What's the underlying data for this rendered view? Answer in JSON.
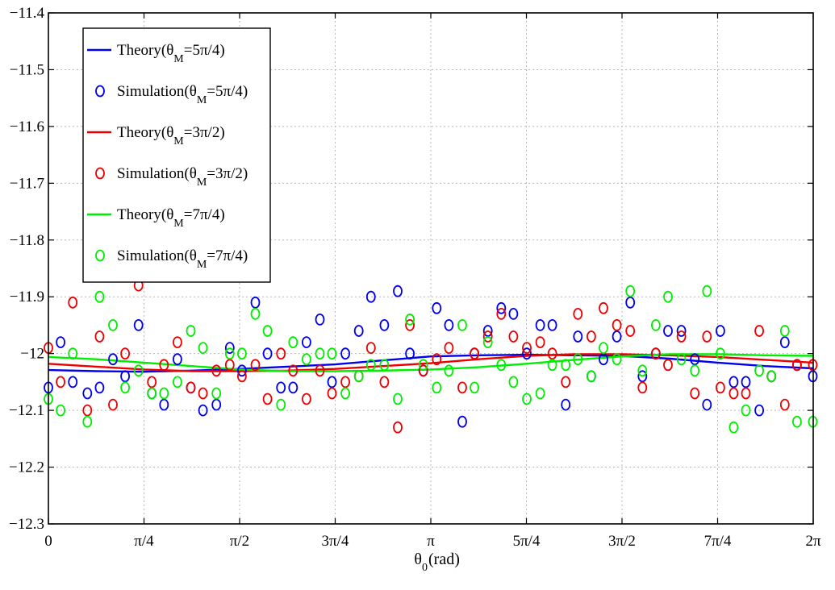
{
  "chart_data": {
    "type": "line",
    "title": "",
    "xlabel": "θ",
    "xlabel_sub": "0",
    "xlabel_suffix": "(rad)",
    "ylabel": "",
    "xlim": [
      0,
      6.283185
    ],
    "ylim": [
      -12.3,
      -11.4
    ],
    "x_ticks": [
      {
        "value": 0,
        "label": "0"
      },
      {
        "value": 0.785398,
        "label": "π/4"
      },
      {
        "value": 1.570796,
        "label": "π/2"
      },
      {
        "value": 2.356194,
        "label": "3π/4"
      },
      {
        "value": 3.141593,
        "label": "π"
      },
      {
        "value": 3.926991,
        "label": "5π/4"
      },
      {
        "value": 4.712389,
        "label": "3π/2"
      },
      {
        "value": 5.497787,
        "label": "7π/4"
      },
      {
        "value": 6.283185,
        "label": "2π"
      }
    ],
    "y_ticks": [
      {
        "value": -11.4,
        "label": "−11.4"
      },
      {
        "value": -11.5,
        "label": "−11.5"
      },
      {
        "value": -11.6,
        "label": "−11.6"
      },
      {
        "value": -11.7,
        "label": "−11.7"
      },
      {
        "value": -11.8,
        "label": "−11.8"
      },
      {
        "value": -11.9,
        "label": "−11.9"
      },
      {
        "value": -12.0,
        "label": "−12"
      },
      {
        "value": -12.1,
        "label": "−12.1"
      },
      {
        "value": -12.2,
        "label": "−12.2"
      },
      {
        "value": -12.3,
        "label": "−12.3"
      }
    ],
    "grid": true,
    "legend_position": "top-left",
    "series": [
      {
        "name": "Theory(θM=5π/4)",
        "label_main": "Theory(θ",
        "label_sub": "M",
        "label_end": "=5π/4)",
        "kind": "line",
        "color": "#0000ee",
        "x": [
          0,
          0.393,
          0.785,
          1.178,
          1.571,
          1.963,
          2.356,
          2.749,
          3.142,
          3.534,
          3.927,
          4.32,
          4.712,
          5.105,
          5.498,
          5.89,
          6.283
        ],
        "y": [
          -12.029,
          -12.031,
          -12.032,
          -12.03,
          -12.027,
          -12.023,
          -12.019,
          -12.012,
          -12.005,
          -12.003,
          -12.002,
          -12.003,
          -12.004,
          -12.009,
          -12.016,
          -12.022,
          -12.026
        ]
      },
      {
        "name": "Simulation(θM=5π/4)",
        "label_main": "Simulation(θ",
        "label_sub": "M",
        "label_end": "=5π/4)",
        "kind": "markers",
        "color": "#0000ee",
        "x": [
          0.0,
          0.1,
          0.2,
          0.32,
          0.42,
          0.53,
          0.63,
          0.74,
          0.85,
          0.95,
          1.06,
          1.17,
          1.27,
          1.38,
          1.49,
          1.59,
          1.7,
          1.8,
          1.91,
          2.01,
          2.12,
          2.23,
          2.33,
          2.44,
          2.55,
          2.65,
          2.76,
          2.87,
          2.97,
          3.08,
          3.19,
          3.29,
          3.4,
          3.5,
          3.61,
          3.72,
          3.82,
          3.93,
          4.04,
          4.14,
          4.25,
          4.35,
          4.46,
          4.56,
          4.67,
          4.78,
          4.88,
          4.99,
          5.09,
          5.2,
          5.31,
          5.41,
          5.52,
          5.63,
          5.73,
          5.84,
          5.94,
          6.05,
          6.15,
          6.28
        ],
        "y": [
          -12.06,
          -11.98,
          -12.05,
          -12.07,
          -12.06,
          -12.01,
          -12.04,
          -11.95,
          -12.07,
          -12.09,
          -12.01,
          -12.06,
          -12.1,
          -12.09,
          -11.99,
          -12.03,
          -11.91,
          -12.0,
          -12.06,
          -12.06,
          -11.98,
          -11.94,
          -12.05,
          -12.0,
          -11.96,
          -11.9,
          -11.95,
          -11.89,
          -12.0,
          -12.03,
          -11.92,
          -11.95,
          -12.12,
          -12.0,
          -11.96,
          -11.92,
          -11.93,
          -12.0,
          -11.95,
          -11.95,
          -12.09,
          -11.97,
          -12.04,
          -12.01,
          -11.97,
          -11.91,
          -12.04,
          -12.0,
          -11.96,
          -11.96,
          -12.01,
          -12.09,
          -11.96,
          -12.05,
          -12.05,
          -12.1,
          -12.04,
          -11.98,
          -12.02,
          -12.04
        ]
      },
      {
        "name": "Theory(θM=3π/2)",
        "label_main": "Theory(θ",
        "label_sub": "M",
        "label_end": "=3π/2)",
        "kind": "line",
        "color": "#ee0000",
        "x": [
          0,
          0.393,
          0.785,
          1.178,
          1.571,
          1.963,
          2.356,
          2.749,
          3.142,
          3.534,
          3.927,
          4.32,
          4.712,
          5.105,
          5.498,
          5.89,
          6.283
        ],
        "y": [
          -12.018,
          -12.023,
          -12.028,
          -12.031,
          -12.031,
          -12.03,
          -12.027,
          -12.022,
          -12.017,
          -12.01,
          -12.004,
          -12.001,
          -12.001,
          -12.003,
          -12.006,
          -12.011,
          -12.016
        ]
      },
      {
        "name": "Simulation(θM=3π/2)",
        "label_main": "Simulation(θ",
        "label_sub": "M",
        "label_end": "=3π/2)",
        "kind": "markers",
        "color": "#ee0000",
        "x": [
          0.0,
          0.1,
          0.2,
          0.32,
          0.42,
          0.53,
          0.63,
          0.74,
          0.85,
          0.95,
          1.06,
          1.17,
          1.27,
          1.38,
          1.49,
          1.59,
          1.7,
          1.8,
          1.91,
          2.01,
          2.12,
          2.23,
          2.33,
          2.44,
          2.55,
          2.65,
          2.76,
          2.87,
          2.97,
          3.08,
          3.19,
          3.29,
          3.4,
          3.5,
          3.61,
          3.72,
          3.82,
          3.93,
          4.04,
          4.14,
          4.25,
          4.35,
          4.46,
          4.56,
          4.67,
          4.78,
          4.88,
          4.99,
          5.09,
          5.2,
          5.31,
          5.41,
          5.52,
          5.63,
          5.73,
          5.84,
          5.94,
          6.05,
          6.15,
          6.28
        ],
        "y": [
          -11.99,
          -12.05,
          -11.91,
          -12.1,
          -11.97,
          -12.09,
          -12.0,
          -11.88,
          -12.05,
          -12.02,
          -11.98,
          -12.06,
          -12.07,
          -12.03,
          -12.02,
          -12.04,
          -12.02,
          -12.08,
          -12.0,
          -12.03,
          -12.08,
          -12.03,
          -12.07,
          -12.05,
          -12.04,
          -11.99,
          -12.05,
          -12.13,
          -11.95,
          -12.03,
          -12.01,
          -11.99,
          -12.06,
          -12.0,
          -11.97,
          -11.93,
          -11.97,
          -11.99,
          -11.98,
          -12.0,
          -12.05,
          -11.93,
          -11.97,
          -11.92,
          -11.95,
          -11.96,
          -12.06,
          -12.0,
          -12.02,
          -11.97,
          -12.07,
          -11.97,
          -12.06,
          -12.07,
          -12.07,
          -11.96,
          -12.04,
          -12.09,
          -12.02,
          -12.02
        ]
      },
      {
        "name": "Theory(θM=7π/4)",
        "label_main": "Theory(θ",
        "label_sub": "M",
        "label_end": "=7π/4)",
        "kind": "line",
        "color": "#00ee00",
        "x": [
          0,
          0.393,
          0.785,
          1.178,
          1.571,
          1.963,
          2.356,
          2.749,
          3.142,
          3.534,
          3.927,
          4.32,
          4.712,
          5.105,
          5.498,
          5.89,
          6.283
        ],
        "y": [
          -12.006,
          -12.01,
          -12.016,
          -12.022,
          -12.028,
          -12.031,
          -12.031,
          -12.03,
          -12.028,
          -12.024,
          -12.018,
          -12.011,
          -12.005,
          -12.001,
          -12.001,
          -12.003,
          -12.004
        ]
      },
      {
        "name": "Simulation(θM=7π/4)",
        "label_main": "Simulation(θ",
        "label_sub": "M",
        "label_end": "=7π/4)",
        "kind": "markers",
        "color": "#00ee00",
        "x": [
          0.0,
          0.1,
          0.2,
          0.32,
          0.42,
          0.53,
          0.63,
          0.74,
          0.85,
          0.95,
          1.06,
          1.17,
          1.27,
          1.38,
          1.49,
          1.59,
          1.7,
          1.8,
          1.91,
          2.01,
          2.12,
          2.23,
          2.33,
          2.44,
          2.55,
          2.65,
          2.76,
          2.87,
          2.97,
          3.08,
          3.19,
          3.29,
          3.4,
          3.5,
          3.61,
          3.72,
          3.82,
          3.93,
          4.04,
          4.14,
          4.25,
          4.35,
          4.46,
          4.56,
          4.67,
          4.78,
          4.88,
          4.99,
          5.09,
          5.2,
          5.31,
          5.41,
          5.52,
          5.63,
          5.73,
          5.84,
          5.94,
          6.05,
          6.15,
          6.28
        ],
        "y": [
          -12.08,
          -12.1,
          -12.0,
          -12.12,
          -11.9,
          -11.95,
          -12.06,
          -12.03,
          -12.07,
          -12.07,
          -12.05,
          -11.96,
          -11.99,
          -12.07,
          -12.0,
          -12.0,
          -11.93,
          -11.96,
          -12.09,
          -11.98,
          -12.01,
          -12.0,
          -12.0,
          -12.07,
          -12.04,
          -12.02,
          -12.02,
          -12.08,
          -11.94,
          -12.02,
          -12.06,
          -12.03,
          -11.95,
          -12.06,
          -11.98,
          -12.02,
          -12.05,
          -12.08,
          -12.07,
          -12.02,
          -12.02,
          -12.01,
          -12.04,
          -11.99,
          -12.01,
          -11.89,
          -12.03,
          -11.95,
          -11.9,
          -12.01,
          -12.03,
          -11.89,
          -12.0,
          -12.13,
          -12.1,
          -12.03,
          -12.04,
          -11.96,
          -12.12,
          -12.12
        ]
      }
    ]
  }
}
